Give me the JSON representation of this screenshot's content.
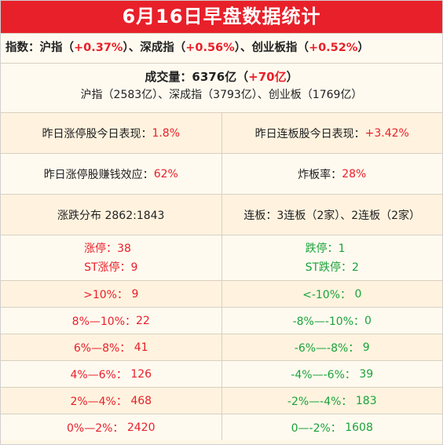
{
  "title": "6月16日早盘数据统计",
  "indices": {
    "label": "指数：",
    "items": [
      {
        "name": "沪指",
        "change": "+0.37%"
      },
      {
        "name": "深成指",
        "change": "+0.56%"
      },
      {
        "name": "创业板指",
        "change": "+0.52%"
      }
    ]
  },
  "volume": {
    "label": "成交量：",
    "total": "6376亿",
    "change": "+70亿",
    "breakdown": "沪指（2583亿）、深成指（3793亿）、创业板（1769亿）"
  },
  "stats": {
    "prev_limit_up_label": "昨日涨停股今日表现：",
    "prev_limit_up_value": "1.8%",
    "prev_streak_label": "昨日连板股今日表现：",
    "prev_streak_value": "+3.42%",
    "profit_effect_label": "昨日涨停股赚钱效应：",
    "profit_effect_value": "62%",
    "break_rate_label": "炸板率：",
    "break_rate_value": "28%",
    "distribution": "涨跌分布 2862:1843",
    "streak_boards": "连板：3连板（2家）、2连板（2家）"
  },
  "limits": {
    "up": [
      {
        "label": "涨停：",
        "value": "38"
      },
      {
        "label": "ST涨停：",
        "value": "9"
      }
    ],
    "down": [
      {
        "label": "跌停：",
        "value": "1"
      },
      {
        "label": "ST跌停：",
        "value": "2"
      }
    ]
  },
  "ranges": [
    {
      "up_label": ">10%：",
      "up_value": "9",
      "down_label": "<-10%：",
      "down_value": "0"
    },
    {
      "up_label": "8%—10%：",
      "up_value": "22",
      "down_label": "-8%—-10%：",
      "down_value": "0"
    },
    {
      "up_label": "6%—8%：",
      "up_value": "41",
      "down_label": "-6%—-8%：",
      "down_value": "9"
    },
    {
      "up_label": "4%—6%：",
      "up_value": "126",
      "down_label": "-4%—-6%：",
      "down_value": "39"
    },
    {
      "up_label": "2%—4%：",
      "up_value": "468",
      "down_label": "-2%—-4%：",
      "down_value": "183"
    },
    {
      "up_label": "0%—2%：",
      "up_value": "2420",
      "down_label": "0—-2%：",
      "down_value": "1608"
    }
  ],
  "colors": {
    "up": "#e8202a",
    "down": "#1aa33a",
    "header_bg": "#e8202a"
  }
}
